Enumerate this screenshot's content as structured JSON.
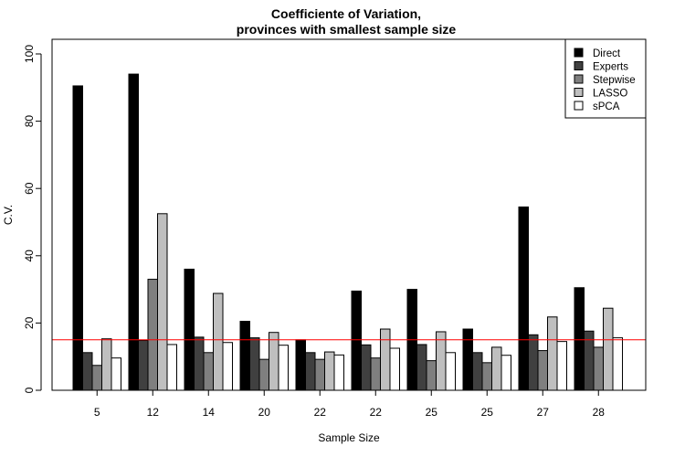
{
  "chart_data": {
    "type": "bar",
    "title_line1": "Coefficiente of Variation,",
    "title_line2": "provinces with smallest sample size",
    "xlabel": "Sample Size",
    "ylabel": "C.V.",
    "ylim": [
      0,
      100
    ],
    "yticks": [
      0,
      20,
      40,
      60,
      80,
      100
    ],
    "categories": [
      "5",
      "12",
      "14",
      "20",
      "22",
      "22",
      "25",
      "25",
      "27",
      "28"
    ],
    "series": [
      {
        "name": "Direct",
        "color": "#000000",
        "values": [
          90.5,
          94.0,
          36.0,
          20.5,
          15.0,
          29.5,
          30.0,
          18.2,
          54.5,
          30.5
        ]
      },
      {
        "name": "Experts",
        "color": "#404040",
        "values": [
          11.2,
          14.8,
          15.8,
          15.6,
          11.2,
          13.5,
          13.6,
          11.2,
          16.5,
          17.6
        ]
      },
      {
        "name": "Stepwise",
        "color": "#7f7f7f",
        "values": [
          7.4,
          33.0,
          11.2,
          9.2,
          9.2,
          9.6,
          8.8,
          8.2,
          11.8,
          12.8
        ]
      },
      {
        "name": "LASSO",
        "color": "#bfbfbf",
        "values": [
          15.3,
          52.5,
          28.8,
          17.2,
          11.4,
          18.2,
          17.4,
          12.8,
          21.8,
          24.4
        ]
      },
      {
        "name": "sPCA",
        "color": "#ffffff",
        "values": [
          9.6,
          13.6,
          14.2,
          13.4,
          10.5,
          12.5,
          11.2,
          10.4,
          14.5,
          15.6
        ]
      }
    ],
    "reference_line": {
      "value": 15,
      "color": "#ff0000"
    },
    "legend_position": "top-right"
  }
}
